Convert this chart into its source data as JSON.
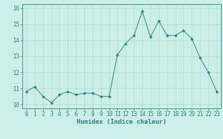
{
  "x_data": [
    0,
    1,
    2,
    3,
    4,
    5,
    6,
    7,
    8,
    9,
    10,
    11,
    12,
    13,
    14,
    15,
    16,
    17,
    18,
    19,
    20,
    21,
    22,
    23
  ],
  "y_data": [
    10.8,
    11.1,
    10.5,
    10.1,
    10.6,
    10.8,
    10.6,
    10.7,
    10.7,
    10.5,
    10.5,
    13.1,
    13.8,
    14.3,
    15.8,
    14.2,
    15.2,
    14.3,
    14.3,
    14.6,
    14.1,
    12.9,
    12.0,
    10.8
  ],
  "line_color": "#2d7d7d",
  "marker": "D",
  "marker_size": 2.0,
  "bg_color": "#cceee8",
  "grid_color": "#aaddcc",
  "xlabel": "Humidex (Indice chaleur)",
  "xlim": [
    -0.5,
    23.5
  ],
  "ylim": [
    9.75,
    16.25
  ],
  "yticks": [
    10,
    11,
    12,
    13,
    14,
    15,
    16
  ],
  "xticks": [
    0,
    1,
    2,
    3,
    4,
    5,
    6,
    7,
    8,
    9,
    10,
    11,
    12,
    13,
    14,
    15,
    16,
    17,
    18,
    19,
    20,
    21,
    22,
    23
  ],
  "xlabel_fontsize": 6.5,
  "tick_fontsize": 5.8
}
